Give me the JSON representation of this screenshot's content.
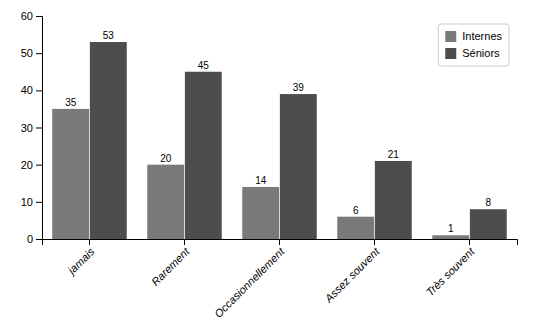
{
  "chart_data": {
    "type": "bar",
    "categories": [
      "jamais",
      "Rarement",
      "Occasionnellement",
      "Assez souvent",
      "Très souvent"
    ],
    "series": [
      {
        "name": "Internes",
        "color": "#7a7a7a",
        "values": [
          35,
          20,
          14,
          6,
          1
        ]
      },
      {
        "name": "Séniors",
        "color": "#4d4d4d",
        "values": [
          53,
          45,
          39,
          21,
          8
        ]
      }
    ],
    "ylim": [
      0,
      60
    ],
    "yticks": [
      0,
      10,
      20,
      30,
      40,
      50,
      60
    ],
    "grid": false,
    "legend": "upper right",
    "data_labels": true
  }
}
